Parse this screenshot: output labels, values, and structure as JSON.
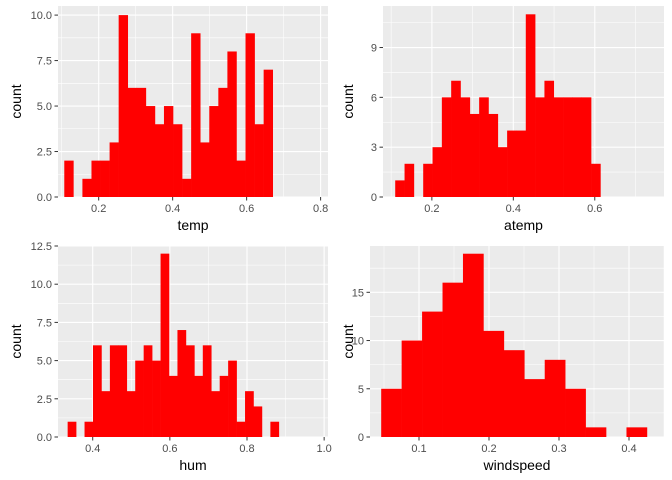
{
  "chart_data": [
    {
      "type": "bar",
      "subtype": "histogram",
      "xlabel": "temp",
      "ylabel": "count",
      "xlim": [
        0.09,
        0.82
      ],
      "ylim": [
        0,
        10.5
      ],
      "xticks": [
        0.2,
        0.4,
        0.6,
        0.8
      ],
      "xtick_labels": [
        "0.2",
        "0.4",
        "0.6",
        "0.8"
      ],
      "yticks": [
        0,
        2.5,
        5,
        7.5,
        10
      ],
      "ytick_labels": [
        "0.0",
        "2.5",
        "5.0",
        "7.5",
        "10.0"
      ],
      "bin_start": 0.107,
      "bin_width": 0.0245,
      "counts": [
        2,
        0,
        1,
        2,
        2,
        3,
        10,
        6,
        6,
        5,
        4,
        5,
        4,
        1,
        9,
        3,
        5,
        6,
        8,
        2,
        9,
        4,
        7
      ]
    },
    {
      "type": "bar",
      "subtype": "histogram",
      "xlabel": "atemp",
      "ylabel": "count",
      "xlim": [
        0.08,
        0.77
      ],
      "ylim": [
        0,
        11.5
      ],
      "xticks": [
        0.2,
        0.4,
        0.6
      ],
      "xtick_labels": [
        "0.2",
        "0.4",
        "0.6"
      ],
      "yticks": [
        0,
        3,
        6,
        9
      ],
      "ytick_labels": [
        "0",
        "3",
        "6",
        "9"
      ],
      "bin_start": 0.11,
      "bin_width": 0.0229,
      "counts": [
        1,
        2,
        0,
        2,
        3,
        6,
        7,
        6,
        5,
        6,
        5,
        3,
        4,
        4,
        11,
        6,
        7,
        6,
        6,
        6,
        6,
        2
      ]
    },
    {
      "type": "bar",
      "subtype": "histogram",
      "xlabel": "hum",
      "ylabel": "count",
      "xlim": [
        0.31,
        1.01
      ],
      "ylim": [
        0,
        12.5
      ],
      "xticks": [
        0.4,
        0.6,
        0.8,
        1.0
      ],
      "xtick_labels": [
        "0.4",
        "0.6",
        "0.8",
        "1.0"
      ],
      "yticks": [
        0,
        2.5,
        5,
        7.5,
        10,
        12.5
      ],
      "ytick_labels": [
        "0.0",
        "2.5",
        "5.0",
        "7.5",
        "10.0",
        "12.5"
      ],
      "bin_start": 0.335,
      "bin_width": 0.0219,
      "counts": [
        1,
        0,
        1,
        6,
        3,
        6,
        6,
        3,
        5,
        6,
        5,
        12,
        4,
        7,
        6,
        4,
        6,
        3,
        4,
        5,
        1,
        3,
        2,
        0,
        1
      ]
    },
    {
      "type": "bar",
      "subtype": "histogram",
      "xlabel": "windspeed",
      "ylabel": "count",
      "xlim": [
        0.03,
        0.45
      ],
      "ylim": [
        0,
        19.8
      ],
      "xticks": [
        0.1,
        0.2,
        0.3,
        0.4
      ],
      "xtick_labels": [
        "0.1",
        "0.2",
        "0.3",
        "0.4"
      ],
      "yticks": [
        0,
        5,
        10,
        15
      ],
      "ytick_labels": [
        "0",
        "5",
        "10",
        "15"
      ],
      "bin_start": 0.046,
      "bin_width": 0.0292,
      "counts": [
        5,
        10,
        13,
        16,
        19,
        11,
        9,
        6,
        8,
        5,
        1,
        0,
        1
      ]
    }
  ],
  "colors": {
    "bar_fill": "#ff0000",
    "panel_background": "#ebebeb",
    "grid_major": "#ffffff",
    "tick_text": "#4d4d4d",
    "tick_mark": "#333333",
    "title_text": "#000000"
  }
}
